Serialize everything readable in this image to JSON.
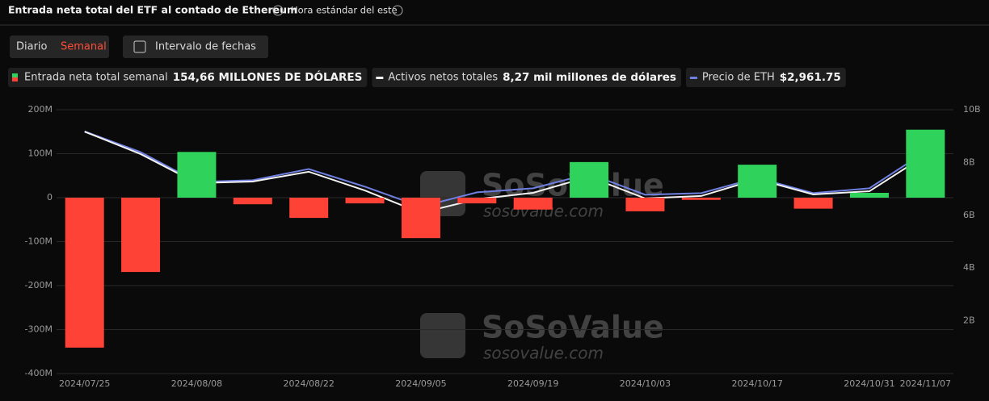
{
  "chart_data": {
    "type": "bar-line",
    "title": "Entrada neta total del ETF al contado de Ethereum",
    "timezone": "Hora estándar del este",
    "buttons": [
      "Diario",
      "Semanal",
      "Intervalo de fechas"
    ],
    "watermark": [
      "SoSoValue",
      "sosovalue.com"
    ],
    "categories": [
      "2024/07/25",
      null,
      "2024/08/08",
      null,
      "2024/08/22",
      null,
      "2024/09/05",
      null,
      "2024/09/19",
      null,
      "2024/10/03",
      null,
      "2024/10/17",
      null,
      "2024/10/31",
      "2024/11/07"
    ],
    "series": [
      {
        "name": "Entrada neta total semanal",
        "legend_value": "154,66 MILLONES DE DÓLARES",
        "color_pos": "#2fd25a",
        "color_neg": "#ff4136",
        "values": [
          -341,
          -169,
          104,
          -15,
          -46,
          -13,
          -92,
          -13,
          -27,
          81,
          -31,
          -5,
          75,
          -25,
          11,
          154.66
        ]
      },
      {
        "name": "Activos netos totales",
        "legend_value": "8,27 mil millones de dólares",
        "color": "#f2f2f2",
        "axis": "y2",
        "values": [
          9.17,
          8.32,
          7.22,
          7.28,
          7.65,
          6.94,
          6.09,
          6.61,
          6.85,
          7.46,
          6.64,
          6.73,
          7.37,
          6.79,
          6.91,
          8.27
        ]
      },
      {
        "name": "Precio de ETH",
        "legend_value": "$2,961.75",
        "color": "#6f7fe0",
        "axis": "y3",
        "values": [
          3175,
          2958,
          2648,
          2665,
          2782,
          2598,
          2389,
          2539,
          2581,
          2732,
          2514,
          2531,
          2690,
          2531,
          2581,
          2961.75
        ]
      }
    ],
    "ylim": [
      -400,
      200
    ],
    "yticks": [
      {
        "value": -400,
        "label": "-400M"
      },
      {
        "value": -300,
        "label": "-300M"
      },
      {
        "value": -200,
        "label": "-200M"
      },
      {
        "value": -100,
        "label": "-100M"
      },
      0,
      {
        "value": 100,
        "label": "100M"
      },
      {
        "value": 200,
        "label": "200M"
      }
    ],
    "y2lim": [
      0,
      10
    ],
    "y2ticks": [
      {
        "value": 2,
        "label": "2B"
      },
      {
        "value": 4,
        "label": "4B"
      },
      {
        "value": 6,
        "label": "6B"
      },
      {
        "value": 8,
        "label": "8B"
      },
      {
        "value": 10,
        "label": "10B"
      }
    ],
    "y3lim": [
      650,
      3400
    ],
    "grid": true
  }
}
